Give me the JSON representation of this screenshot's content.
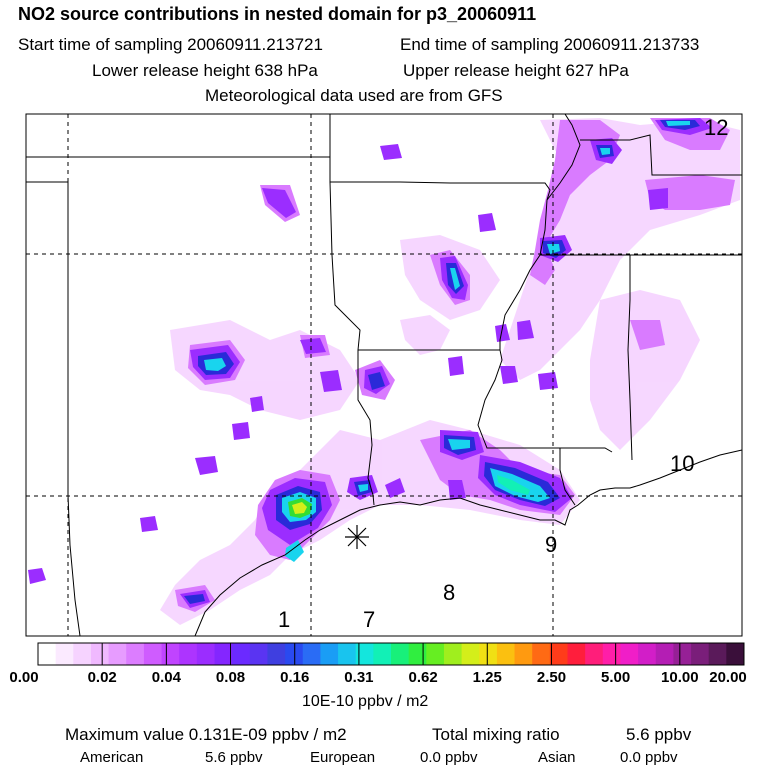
{
  "header": {
    "title": "NO2 source contributions in nested domain for p3_20060911",
    "start_label": "Start time of sampling 20060911.213721",
    "end_label": "End time of sampling 20060911.213733",
    "lower_label": "Lower release height  638 hPa",
    "upper_label": "Upper release height  627 hPa",
    "met_label": "Meteorological data used are from GFS"
  },
  "map": {
    "region_numbers": [
      "12",
      "10",
      "9",
      "8",
      "1",
      "7"
    ],
    "colors": {
      "purple": "#9b2dff",
      "violet": "#c44cff",
      "lavender": "#e79cff",
      "pink": "#f3c9ff",
      "blue": "#2a2ad8",
      "cyan": "#19d4ee",
      "green": "#33dd33",
      "yellow": "#e6e619"
    }
  },
  "colorbar": {
    "ticks": [
      "0.00",
      "0.02",
      "0.04",
      "0.08",
      "0.16",
      "0.31",
      "0.62",
      "1.25",
      "2.50",
      "5.00",
      "10.00",
      "20.00"
    ],
    "unit": "10E-10 ppbv / m2",
    "colors": [
      "#ffffff",
      "#fbeaff",
      "#f6d3ff",
      "#f0b9ff",
      "#e79cff",
      "#dc7dff",
      "#cf5cff",
      "#c044ff",
      "#ad34ff",
      "#9b2dff",
      "#8426ff",
      "#6b2aff",
      "#5a34f2",
      "#3f3fe0",
      "#2a4af0",
      "#2a6cf5",
      "#1a9df5",
      "#19c4ee",
      "#14e6dd",
      "#12f0b6",
      "#18f07a",
      "#30ee40",
      "#66ee22",
      "#a0ee1e",
      "#d4ee1a",
      "#f0e014",
      "#fbc010",
      "#ff9a10",
      "#ff6a14",
      "#ff3c1a",
      "#ff1e3c",
      "#ff1e7a",
      "#ff1ea8",
      "#f01ec8",
      "#d21ec8",
      "#b41eb4",
      "#962096",
      "#7a1e7a",
      "#5a1a5a",
      "#3a0f3a"
    ]
  },
  "footer": {
    "max_label": "Maximum value  0.131E-09 ppbv / m2",
    "total_label": "Total mixing ratio",
    "total_value": "5.6 ppbv",
    "american_label": "American",
    "american_value": "5.6 ppbv",
    "european_label": "European",
    "european_value": "0.0 ppbv",
    "asian_label": "Asian",
    "asian_value": "0.0 ppbv"
  }
}
